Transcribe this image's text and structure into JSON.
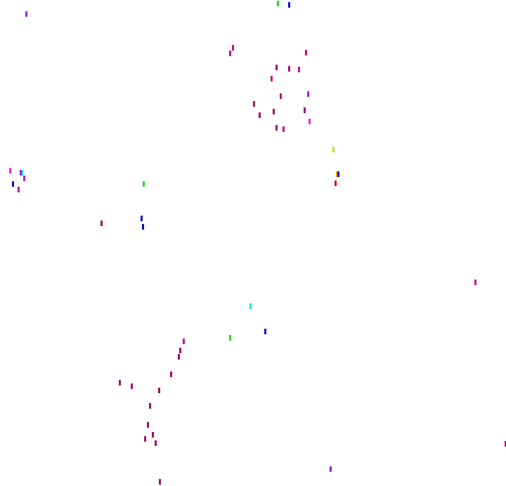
{
  "background": "#ffffff",
  "palette": {
    "magenta": "#c01090",
    "dark_magenta": "#a01070",
    "purple": "#a020f0",
    "pink": "#ff20e0",
    "green": "#22dd22",
    "blue": "#1010d0",
    "cyan": "#00e0ff",
    "teal": "#20e0d0",
    "lime": "#c0e020",
    "orange": "#f0a000",
    "red": "#e01020"
  }
}
